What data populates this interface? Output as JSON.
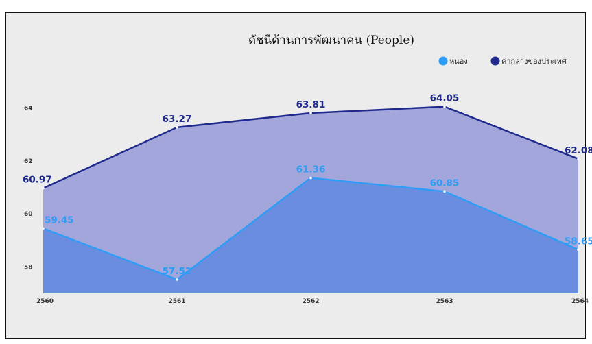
{
  "chart_data": {
    "type": "area",
    "title": "ดัชนีด้านการพัฒนาคน (People)",
    "categories": [
      "2560",
      "2561",
      "2562",
      "2563",
      "2564"
    ],
    "y_ticks": [
      58,
      60,
      62,
      64
    ],
    "ylim": [
      57,
      65
    ],
    "grid": false,
    "legend_position": "top-right",
    "series": [
      {
        "name": "หนอง",
        "values": [
          59.45,
          57.52,
          61.36,
          60.85,
          58.65
        ],
        "color": "#2f9cf5",
        "fill": "#6b8de0"
      },
      {
        "name": "ค่ากลางของประเทศ",
        "values": [
          60.97,
          63.27,
          63.81,
          64.05,
          62.08
        ],
        "color": "#1f2a8c",
        "fill": "#a2a6da"
      }
    ]
  }
}
